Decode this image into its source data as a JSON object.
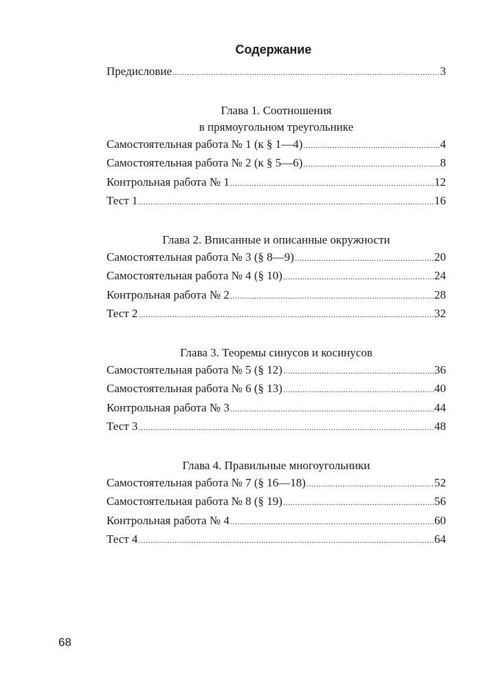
{
  "title": "Содержание",
  "preface": {
    "label": "Предисловие",
    "page": "3"
  },
  "chapters": [
    {
      "heading": [
        "Глава 1. Соотношения",
        "в прямоугольном треугольнике"
      ],
      "entries": [
        {
          "label": "Самостоятельная работа № 1 (к § 1—4)",
          "page": "4"
        },
        {
          "label": "Самостоятельная работа № 2 (к § 5—6)",
          "page": "8"
        },
        {
          "label": "Контрольная работа № 1",
          "page": "12"
        },
        {
          "label": "Тест 1",
          "page": "16"
        }
      ]
    },
    {
      "heading": [
        "Глава 2. Вписанные и описанные окружности"
      ],
      "entries": [
        {
          "label": "Самостоятельная работа № 3 (§ 8—9)",
          "page": "20"
        },
        {
          "label": "Самостоятельная работа № 4 (§ 10)",
          "page": "24"
        },
        {
          "label": "Контрольная работа № 2",
          "page": "28"
        },
        {
          "label": "Тест 2",
          "page": "32"
        }
      ]
    },
    {
      "heading": [
        "Глава 3. Теоремы синусов и косинусов"
      ],
      "entries": [
        {
          "label": "Самостоятельная работа № 5 (§ 12)",
          "page": "36"
        },
        {
          "label": "Самостоятельная работа № 6 (§ 13)",
          "page": "40"
        },
        {
          "label": "Контрольная работа № 3",
          "page": "44"
        },
        {
          "label": "Тест 3",
          "page": "48"
        }
      ]
    },
    {
      "heading": [
        "Глава 4. Правильные многоугольники"
      ],
      "entries": [
        {
          "label": "Самостоятельная работа № 7 (§ 16—18)",
          "page": "52"
        },
        {
          "label": "Самостоятельная работа № 8 (§ 19)",
          "page": "56"
        },
        {
          "label": "Контрольная работа № 4",
          "page": "60"
        },
        {
          "label": "Тест 4",
          "page": "64"
        }
      ]
    }
  ],
  "page_number": "68"
}
